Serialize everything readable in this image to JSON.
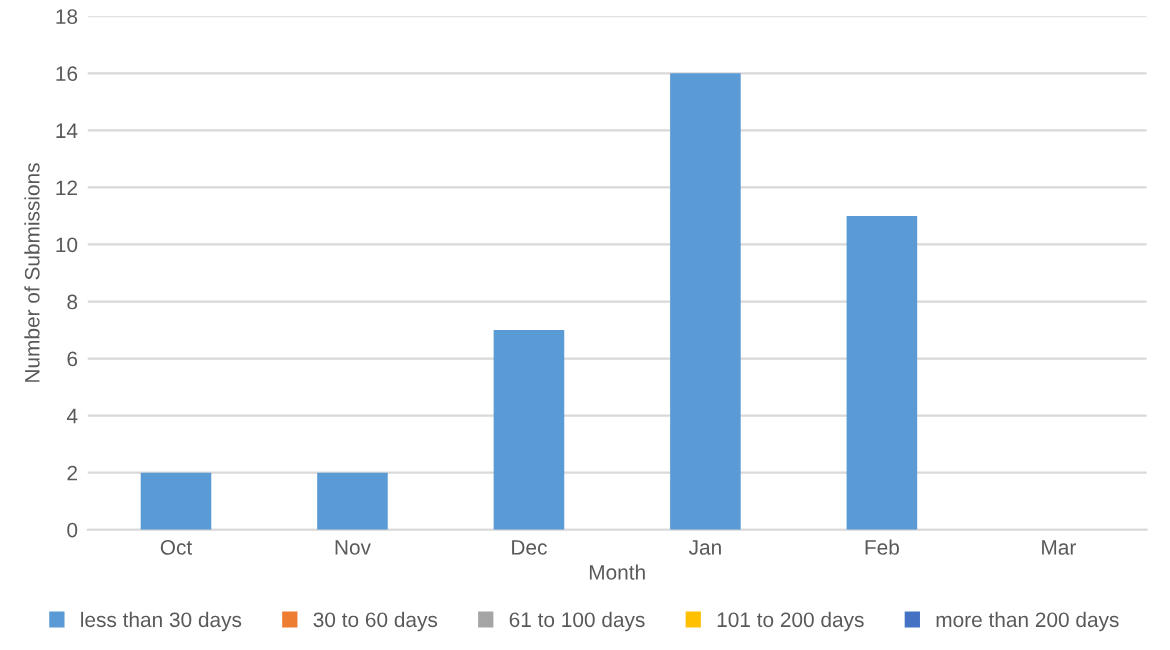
{
  "chart_data": {
    "type": "bar",
    "stacked": true,
    "xlabel": "Month",
    "ylabel": "Number of Submissions",
    "categories": [
      "Oct",
      "Nov",
      "Dec",
      "Jan",
      "Feb",
      "Mar"
    ],
    "series": [
      {
        "name": "less than 30 days",
        "color": "#5b9bd5",
        "values": [
          2,
          2,
          7,
          16,
          11,
          0
        ]
      },
      {
        "name": "30 to 60 days",
        "color": "#ed7d31",
        "values": [
          0,
          0,
          0,
          0,
          0,
          0
        ]
      },
      {
        "name": "61 to 100 days",
        "color": "#a5a5a5",
        "values": [
          0,
          0,
          0,
          0,
          0,
          0
        ]
      },
      {
        "name": "101 to 200 days",
        "color": "#ffc000",
        "values": [
          0,
          0,
          0,
          0,
          0,
          0
        ]
      },
      {
        "name": "more than 200 days",
        "color": "#4472c4",
        "values": [
          0,
          0,
          0,
          0,
          0,
          0
        ]
      }
    ],
    "ylim": [
      0,
      18
    ],
    "yticks": [
      0,
      2,
      4,
      6,
      8,
      10,
      12,
      14,
      16,
      18
    ],
    "grid": "y",
    "legend": "bottom"
  }
}
